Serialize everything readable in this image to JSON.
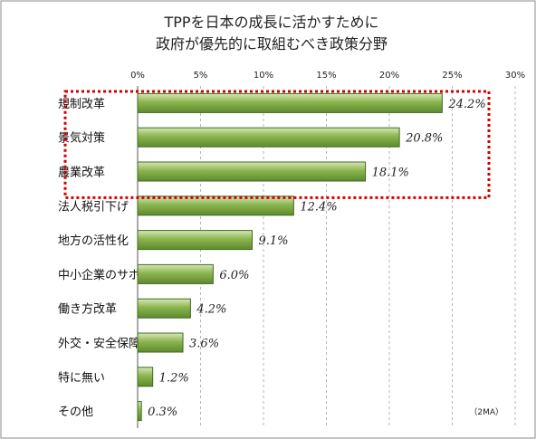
{
  "chart_data": {
    "type": "bar",
    "orientation": "horizontal",
    "title": [
      "TPPを日本の成長に活かすために",
      "政府が優先的に取組むべき政策分野"
    ],
    "categories": [
      "規制改革",
      "景気対策",
      "農業改革",
      "法人税引下げ",
      "地方の活性化",
      "中小企業のサポート",
      "働き方改革",
      "外交・安全保障政策",
      "特に無い",
      "その他"
    ],
    "values": [
      24.2,
      20.8,
      18.1,
      12.4,
      9.1,
      6.0,
      4.2,
      3.6,
      1.2,
      0.3
    ],
    "value_labels": [
      "24.2%",
      "20.8%",
      "18.1%",
      "12.4%",
      "9.1%",
      "6.0%",
      "4.2%",
      "3.6%",
      "1.2%",
      "0.3%"
    ],
    "x_ticks": [
      "0%",
      "5%",
      "10%",
      "15%",
      "20%",
      "25%",
      "30%"
    ],
    "xlim": [
      0,
      30
    ],
    "x_axis_position": "top",
    "grid": "vertical dashed",
    "highlight": {
      "categories": [
        "規制改革",
        "景気対策",
        "農業改革"
      ],
      "style": "red dotted box"
    },
    "note": "（2MA）",
    "bar_color": "#8ab54e",
    "highlight_color": "#d00000"
  }
}
